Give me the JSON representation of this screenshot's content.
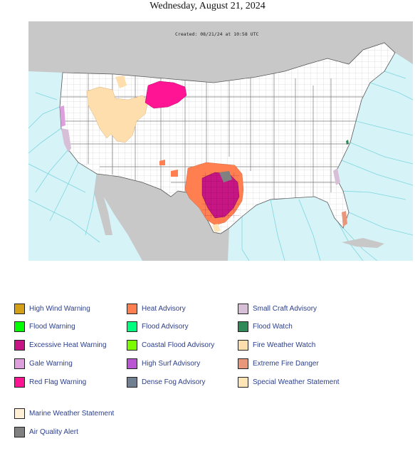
{
  "page": {
    "title": "Wednesday, August 21, 2024"
  },
  "map": {
    "created_label": "Created: 08/21/24 at 10:58 UTC",
    "colors": {
      "ocean": "#d6f3f7",
      "ocean_lines": "#7ed6e0",
      "land_foreign": "#c8c8c8",
      "land_us": "#ffffff",
      "county_lines": "#bdbdbd",
      "state_lines": "#7a7a7a"
    }
  },
  "legend": {
    "columns": [
      [
        {
          "label": "High Wind Warning",
          "color": "#d4a017"
        },
        {
          "label": "Flood Warning",
          "color": "#00ff00"
        },
        {
          "label": "Excessive Heat Warning",
          "color": "#c71585"
        },
        {
          "label": "Gale Warning",
          "color": "#dda0dd"
        },
        {
          "label": "Red Flag Warning",
          "color": "#ff1493"
        }
      ],
      [
        {
          "label": "Heat Advisory",
          "color": "#ff7f50"
        },
        {
          "label": "Flood Advisory",
          "color": "#00ff7f"
        },
        {
          "label": "Coastal Flood Advisory",
          "color": "#7cfc00"
        },
        {
          "label": "High Surf Advisory",
          "color": "#ba55d3"
        },
        {
          "label": "Dense Fog Advisory",
          "color": "#708090"
        }
      ],
      [
        {
          "label": "Small Craft Advisory",
          "color": "#d8bfd8"
        },
        {
          "label": "Flood Watch",
          "color": "#2e8b57"
        },
        {
          "label": "Fire Weather Watch",
          "color": "#ffdead"
        },
        {
          "label": "Extreme Fire Danger",
          "color": "#e9967a"
        },
        {
          "label": "Special Weather Statement",
          "color": "#ffe4b5"
        }
      ]
    ],
    "extra": [
      {
        "label": "Marine Weather Statement",
        "color": "#ffefd5"
      },
      {
        "label": "Air Quality Alert",
        "color": "#808080"
      }
    ]
  }
}
